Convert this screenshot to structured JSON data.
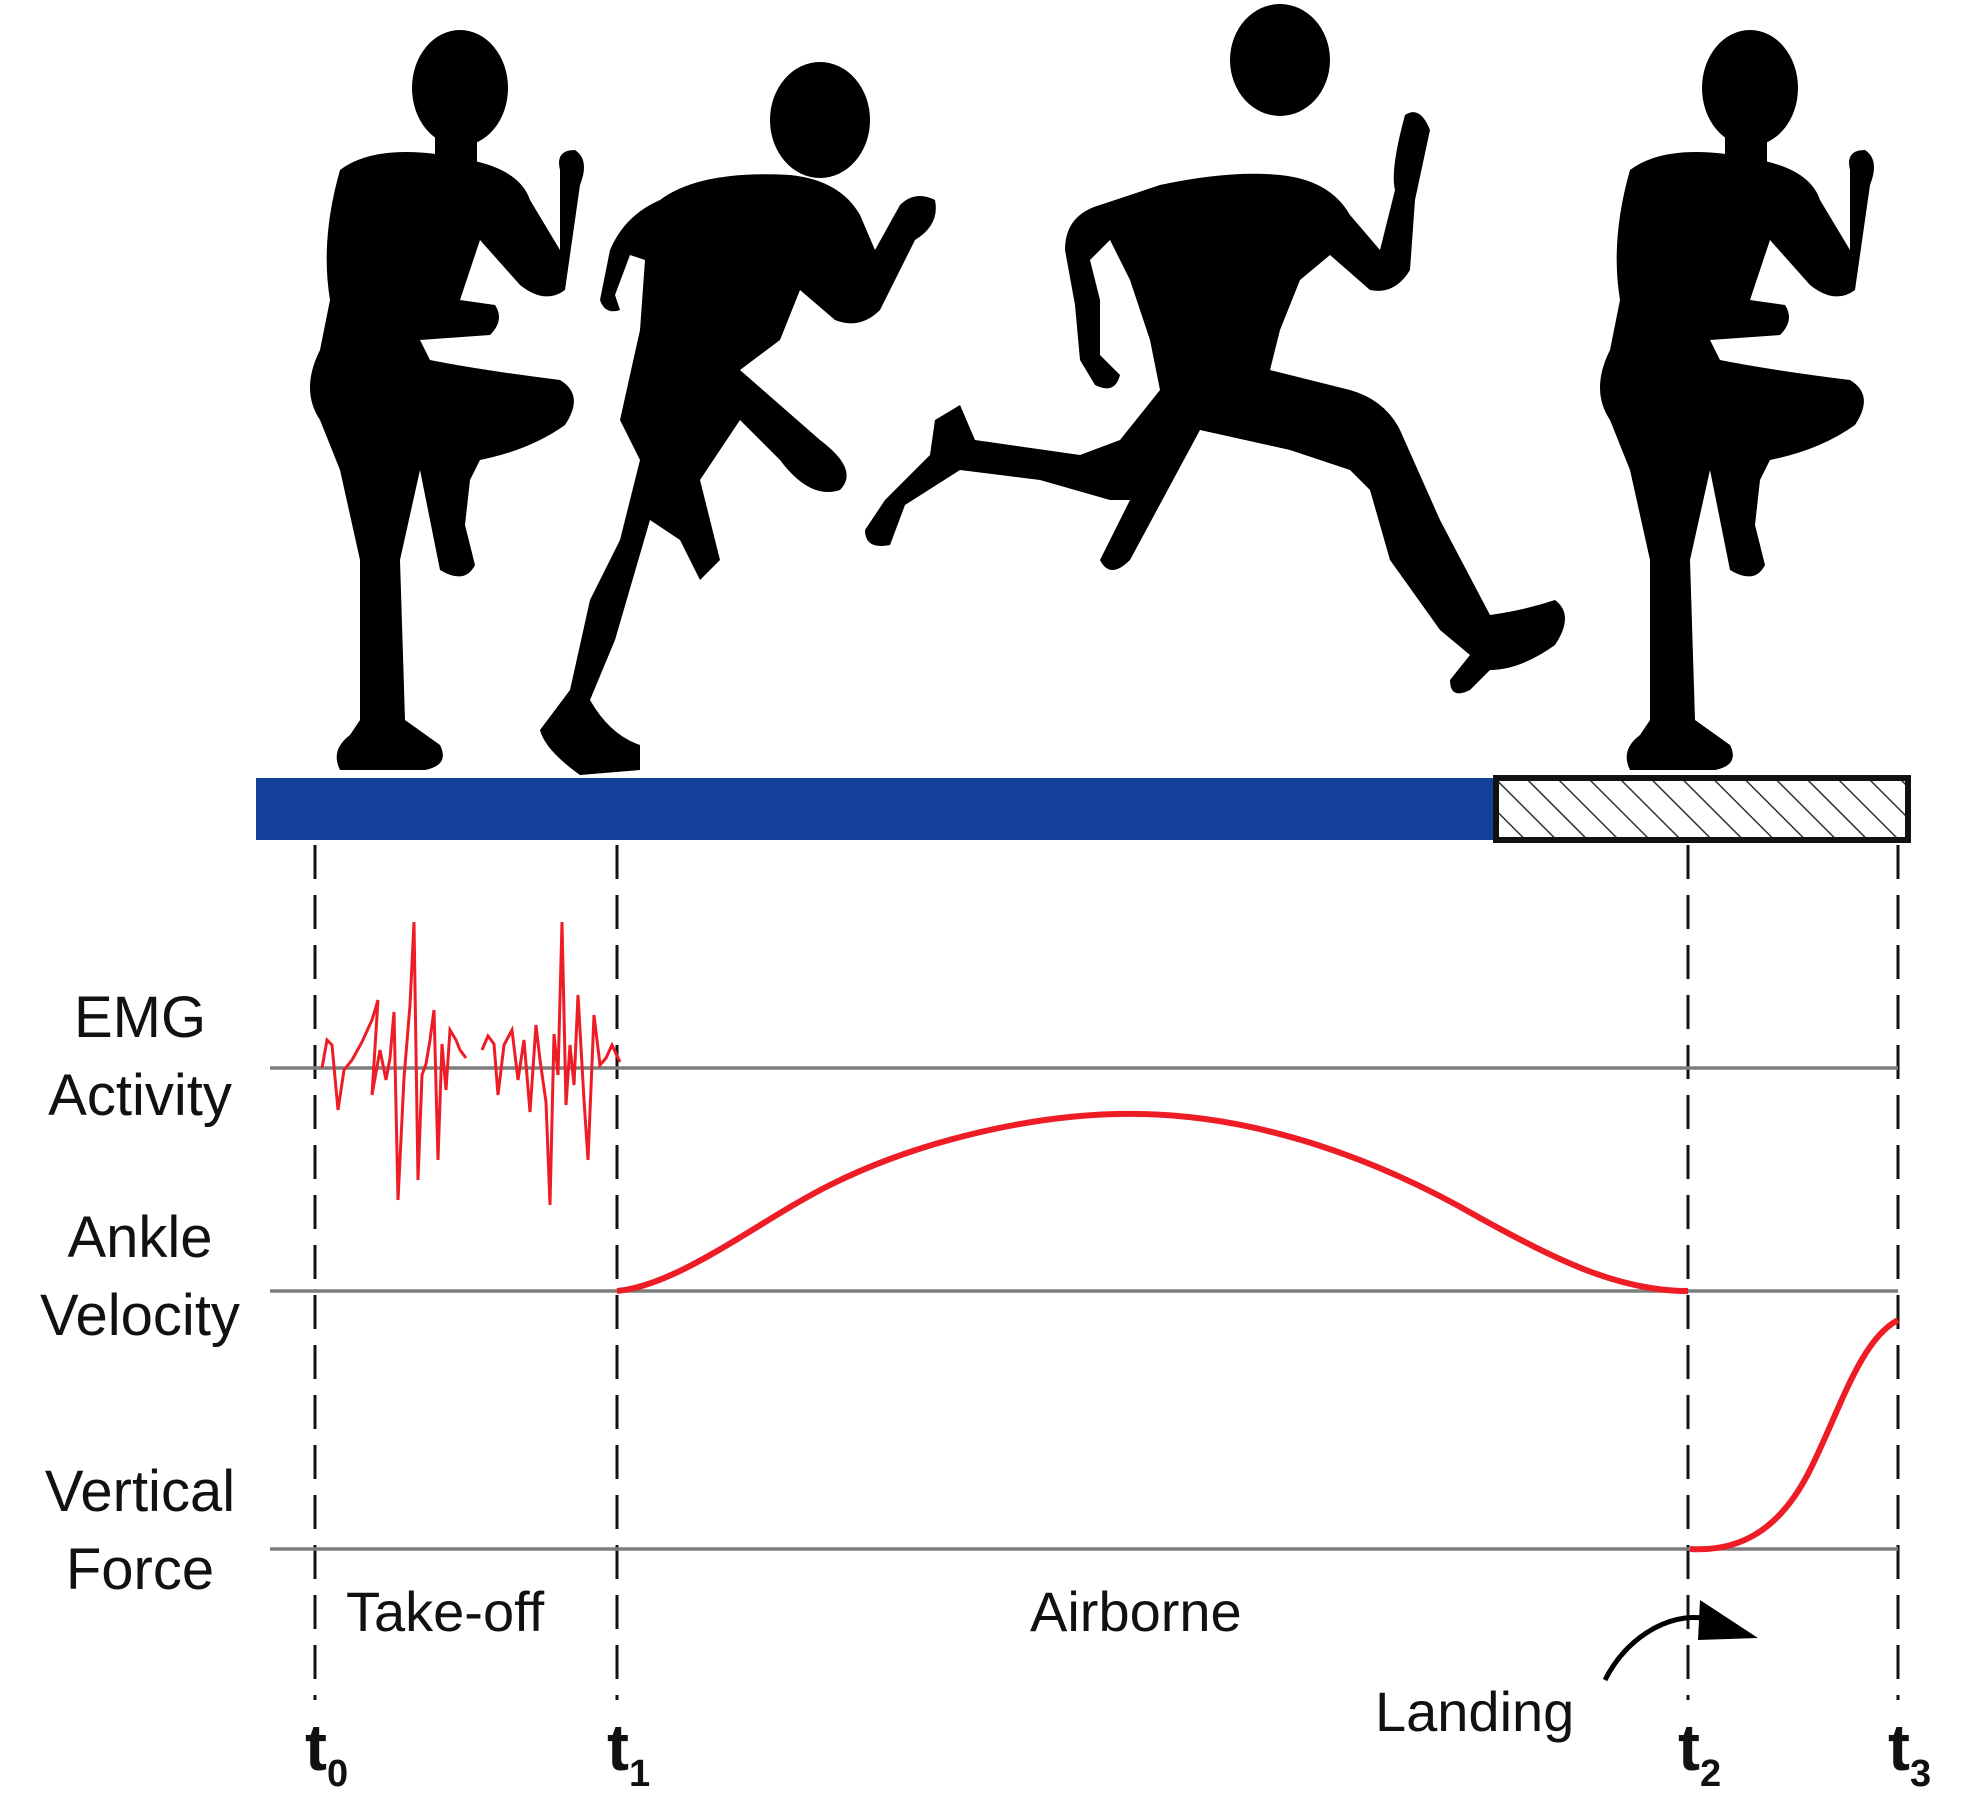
{
  "rows": [
    {
      "line1": "EMG",
      "line2": "Activity"
    },
    {
      "line1": "Ankle",
      "line2": "Velocity"
    },
    {
      "line1": "Vertical",
      "line2": "Force"
    }
  ],
  "phases": {
    "takeoff": "Take-off",
    "airborne": "Airborne",
    "landing": "Landing"
  },
  "time_markers": [
    {
      "base": "t",
      "sub": "0"
    },
    {
      "base": "t",
      "sub": "1"
    },
    {
      "base": "t",
      "sub": "2"
    },
    {
      "base": "t",
      "sub": "3"
    }
  ],
  "colors": {
    "track": "#13409a",
    "trace": "#ee1c25",
    "baseline": "#7d7d7d",
    "silhouette": "#000000",
    "dashed": "#111111"
  },
  "icons": {
    "runners": [
      "runner-knee-up-icon",
      "runner-takeoff-icon",
      "runner-airborne-icon",
      "runner-landing-icon"
    ],
    "arrow": "curved-arrow-icon"
  }
}
